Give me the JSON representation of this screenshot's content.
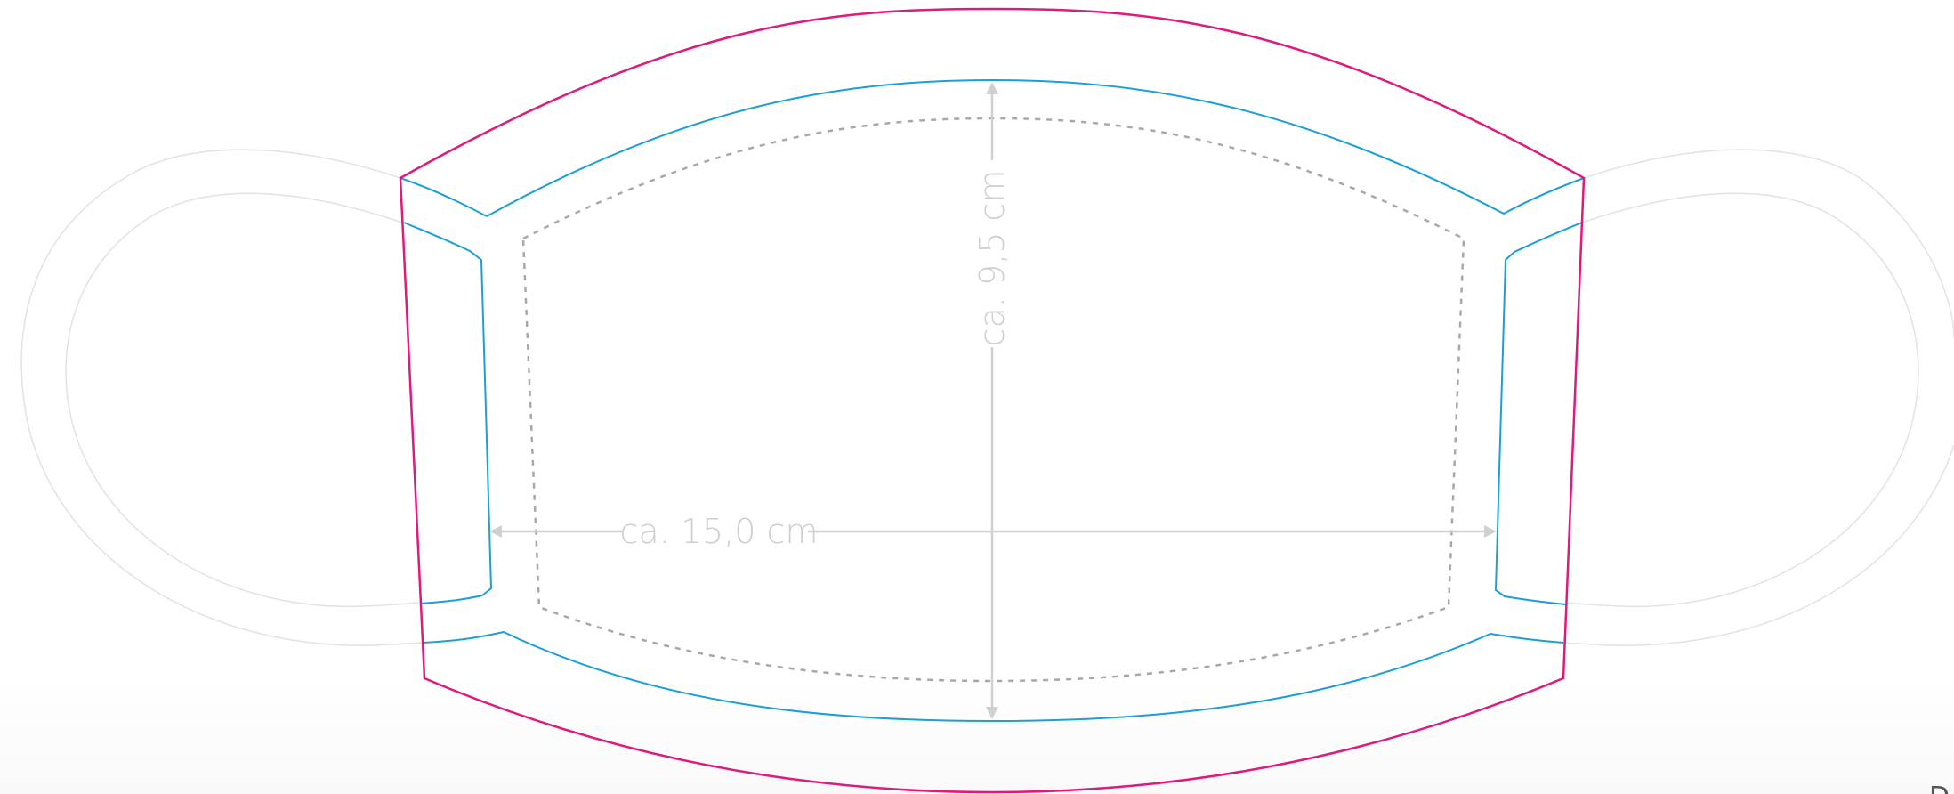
{
  "measurements": {
    "width_label": "ca. 15,0 cm",
    "height_label": "ca. 9,5 cm"
  },
  "corner_text": "D",
  "colors": {
    "outer_cut_line": "#e0197d",
    "seam_line": "#1a9fd9",
    "inner_line": "#a8a8a8",
    "ear_loop": "#e2e2e2",
    "dimension": "#d0d0d0"
  }
}
